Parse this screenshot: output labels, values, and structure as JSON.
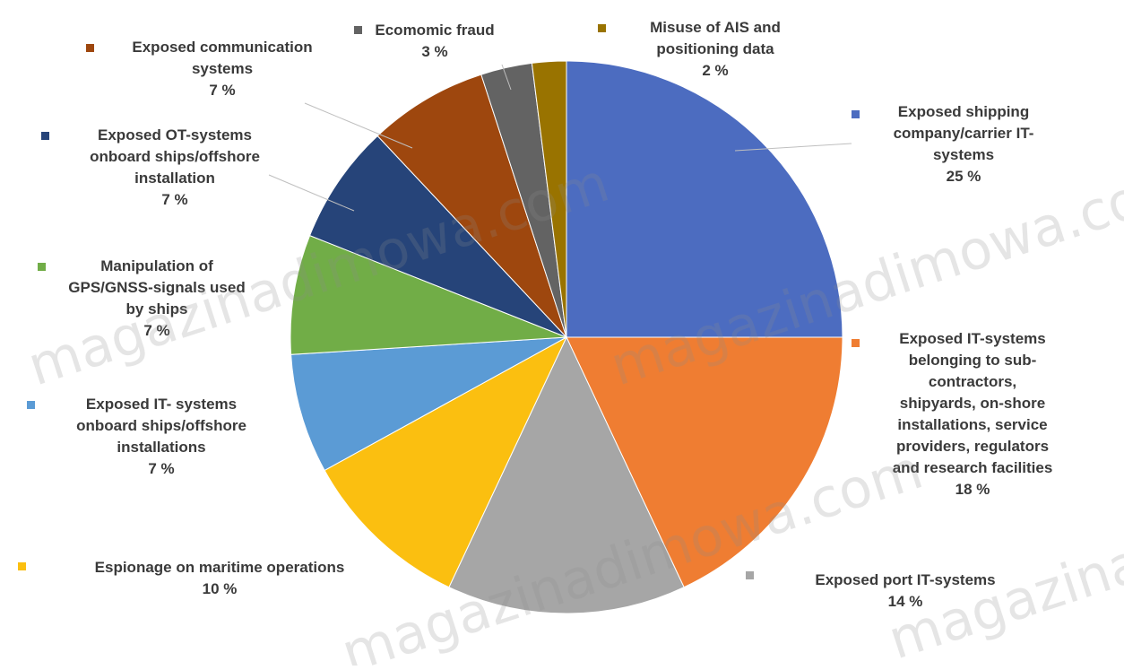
{
  "chart_data": {
    "type": "pie",
    "title": "",
    "slices": [
      {
        "name": "Exposed shipping company/carrier IT-systems",
        "lines": [
          "Exposed shipping",
          "company/carrier IT-",
          "systems"
        ],
        "value": 25,
        "pct_label": "25 %",
        "color": "#4c6cc0"
      },
      {
        "name": "Exposed IT-systems belonging to sub-contractors, shipyards, on-shore installations, service providers, regulators and research facilities",
        "lines": [
          "Exposed IT-systems",
          "belonging to sub-",
          "contractors,",
          "shipyards, on-shore",
          "installations, service",
          "providers, regulators",
          "and research facilities"
        ],
        "value": 18,
        "pct_label": "18 %",
        "color": "#ef7d32"
      },
      {
        "name": "Exposed port IT-systems",
        "lines": [
          "Exposed port IT-systems"
        ],
        "value": 14,
        "pct_label": "14 %",
        "color": "#a6a6a6"
      },
      {
        "name": "Espionage on maritime operations",
        "lines": [
          "Espionage on maritime operations"
        ],
        "value": 10,
        "pct_label": "10 %",
        "color": "#fbbf10"
      },
      {
        "name": "Exposed IT- systems onboard ships/offshore installations",
        "lines": [
          "Exposed IT- systems",
          "onboard ships/offshore",
          "installations"
        ],
        "value": 7,
        "pct_label": "7 %",
        "color": "#5b9bd5"
      },
      {
        "name": "Manipulation of GPS/GNSS-signals used by ships",
        "lines": [
          "Manipulation of",
          "GPS/GNSS-signals used",
          "by ships"
        ],
        "value": 7,
        "pct_label": "7 %",
        "color": "#71ad47"
      },
      {
        "name": "Exposed OT-systems onboard ships/offshore installation",
        "lines": [
          "Exposed  OT-systems",
          "onboard ships/offshore",
          "installation"
        ],
        "value": 7,
        "pct_label": "7 %",
        "color": "#264479"
      },
      {
        "name": "Exposed communication systems",
        "lines": [
          "Exposed communication",
          "systems"
        ],
        "value": 7,
        "pct_label": "7 %",
        "color": "#9e470e"
      },
      {
        "name": "Ecomomic fraud",
        "lines": [
          "Ecomomic fraud"
        ],
        "value": 3,
        "pct_label": "3 %",
        "color": "#636363"
      },
      {
        "name": "Misuse of AIS and positioning data",
        "lines": [
          "Misuse of AIS and",
          "positioning data"
        ],
        "value": 2,
        "pct_label": "2 %",
        "color": "#997300"
      }
    ],
    "legend": "labels-around-pie"
  },
  "watermark": "magazinadimowa.com"
}
